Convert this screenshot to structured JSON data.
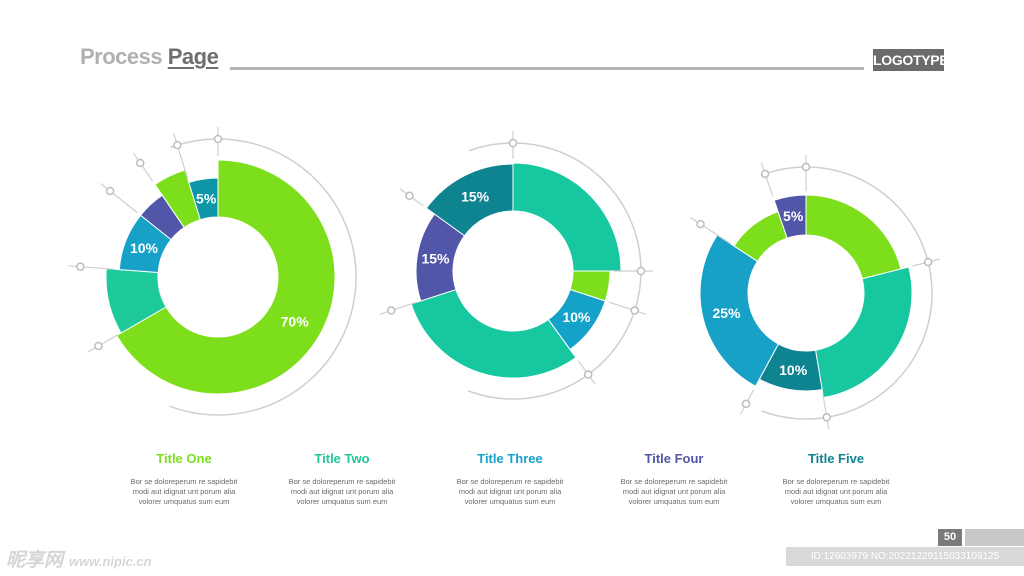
{
  "header": {
    "title_light": "Process",
    "title_dark": "Page",
    "logo": "LOGOTYPE"
  },
  "colors": {
    "lime": "#7ddf1c",
    "teal": "#0d95a8",
    "indigo": "#5256a8",
    "blue": "#17a1c7",
    "mint": "#1ec99a",
    "green2": "#16c7a0",
    "darkteal": "#0f8491",
    "cyan": "#14a2c8",
    "line": "#cfcfcf"
  },
  "chart_data": [
    {
      "type": "pie",
      "name": "chart-one",
      "segments": [
        {
          "value": 70,
          "label": "70%",
          "color": "#7ddf1c",
          "outer": "large"
        },
        {
          "value": 10,
          "color": "#1ec99a",
          "outer": "medium"
        },
        {
          "value": 10,
          "label": "10%",
          "color": "#17a1c7",
          "outer": "small"
        },
        {
          "value": 5,
          "color": "#5256a8",
          "outer": "small"
        },
        {
          "value": 5,
          "color": "#7ddf1c",
          "outer": "medium"
        },
        {
          "value": 5,
          "label": "5%",
          "color": "#0d95a8",
          "outer": "small"
        }
      ]
    },
    {
      "type": "pie",
      "name": "chart-two",
      "segments": [
        {
          "value": 25,
          "color": "#16c7a0",
          "outer": "large"
        },
        {
          "value": 5,
          "color": "#7ddf1c",
          "outer": "small"
        },
        {
          "value": 10,
          "label": "10%",
          "color": "#14a2c8",
          "outer": "small"
        },
        {
          "value": 30,
          "color": "#16c7a0",
          "outer": "medium"
        },
        {
          "value": 15,
          "label": "15%",
          "color": "#5256a8",
          "outer": "small"
        },
        {
          "value": 15,
          "label": "15%",
          "color": "#0f8491",
          "outer": "medium"
        }
      ]
    },
    {
      "type": "pie",
      "name": "chart-three",
      "segments": [
        {
          "value": 20,
          "color": "#7ddf1c",
          "outer": "medium"
        },
        {
          "value": 25,
          "color": "#16c7a0",
          "outer": "large"
        },
        {
          "value": 10,
          "label": "10%",
          "color": "#0f8491",
          "outer": "medium"
        },
        {
          "value": 25,
          "label": "25%",
          "color": "#17a1c7",
          "outer": "large"
        },
        {
          "value": 10,
          "color": "#7ddf1c",
          "outer": "small"
        },
        {
          "value": 5,
          "label": "5%",
          "color": "#5256a8",
          "outer": "medium"
        }
      ]
    }
  ],
  "captions": [
    {
      "title": "Title One",
      "color": "#7ddf1c",
      "text": [
        "Bor se doloreperum re sapidebit",
        "modi aut idignat unt porum alia",
        "volorer umquatus sum eum"
      ]
    },
    {
      "title": "Title Two",
      "color": "#1ec99a",
      "text": [
        "Bor se doloreperum re sapidebit",
        "modi aut idignat unt porum alia",
        "volorer umquatus sum eum"
      ]
    },
    {
      "title": "Title Three",
      "color": "#17a1c7",
      "text": [
        "Bor se doloreperum re sapidebit",
        "modi aut idignat unt porum alia",
        "volorer umquatus sum eum"
      ]
    },
    {
      "title": "Title Four",
      "color": "#5256a8",
      "text": [
        "Bor se doloreperum re sapidebit",
        "modi aut idignat unt porum alia",
        "volorer umquatus sum eum"
      ]
    },
    {
      "title": "Title Five",
      "color": "#0f8491",
      "text": [
        "Bor se doloreperum re sapidebit",
        "modi aut idignat unt porum alia",
        "volorer umquatus sum eum"
      ]
    }
  ],
  "footer": {
    "page_number": "50",
    "watermark_left": "昵享网",
    "watermark_site": "www.nipic.cn",
    "watermark_id": "ID:12603979 NO:20221229115033109125"
  }
}
